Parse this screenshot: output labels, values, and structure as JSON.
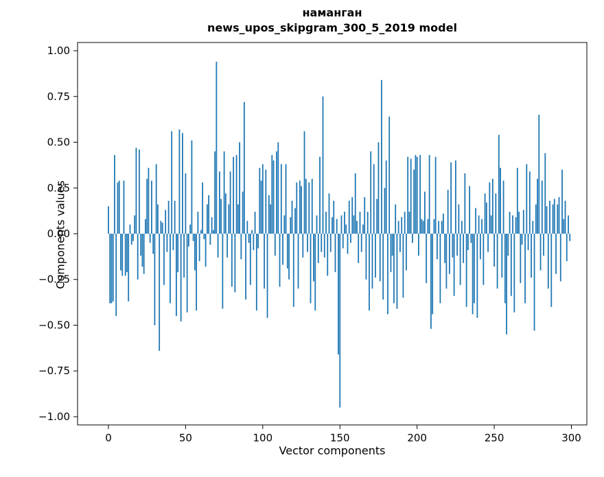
{
  "title": {
    "line1": "наманган",
    "line2": "news_upos_skipgram_300_5_2019 model"
  },
  "axes": {
    "xlabel": "Vector components",
    "ylabel": "Components values"
  },
  "chart_data": {
    "type": "bar",
    "title": "наманган — news_upos_skipgram_300_5_2019 model",
    "xlabel": "Vector components",
    "ylabel": "Components values",
    "bar_color": "#1f77b4",
    "grid": false,
    "legend": "none",
    "xlim": [
      -20,
      310
    ],
    "ylim": [
      -1.045,
      1.045
    ],
    "xticks": [
      0,
      50,
      100,
      150,
      200,
      250,
      300
    ],
    "xticklabels": [
      "0",
      "50",
      "100",
      "150",
      "200",
      "250",
      "300"
    ],
    "yticks": [
      -1.0,
      -0.75,
      -0.5,
      -0.25,
      0.0,
      0.25,
      0.5,
      0.75,
      1.0
    ],
    "yticklabels": [
      "−1.00",
      "−0.75",
      "−0.50",
      "−0.25",
      "0.00",
      "0.25",
      "0.50",
      "0.75",
      "1.00"
    ],
    "values": [
      0.15,
      -0.38,
      -0.38,
      -0.37,
      0.43,
      -0.45,
      0.28,
      0.29,
      -0.2,
      -0.23,
      0.29,
      -0.23,
      -0.21,
      -0.37,
      0.05,
      -0.06,
      -0.04,
      0.1,
      0.47,
      -0.25,
      0.46,
      -0.12,
      -0.18,
      -0.22,
      0.08,
      0.3,
      0.36,
      -0.05,
      0.29,
      -0.11,
      -0.5,
      0.38,
      0.16,
      -0.64,
      0.07,
      0.06,
      -0.28,
      0.13,
      -0.1,
      0.18,
      -0.38,
      0.56,
      -0.09,
      0.18,
      -0.45,
      -0.21,
      0.57,
      -0.48,
      0.55,
      -0.24,
      0.33,
      -0.43,
      -0.07,
      0.05,
      0.51,
      -0.04,
      -0.2,
      -0.42,
      0.12,
      -0.15,
      0.02,
      0.28,
      -0.03,
      -0.18,
      0.16,
      0.21,
      -0.06,
      0.09,
      0.02,
      0.45,
      0.94,
      -0.13,
      0.34,
      0.19,
      -0.41,
      0.45,
      0.22,
      -0.13,
      0.16,
      0.34,
      -0.29,
      0.42,
      -0.32,
      0.43,
      0.16,
      0.5,
      -0.14,
      0.23,
      0.72,
      -0.36,
      0.07,
      -0.05,
      -0.28,
      0.02,
      -0.09,
      0.12,
      -0.42,
      -0.08,
      0.36,
      0.29,
      0.38,
      -0.3,
      0.35,
      -0.46,
      0.21,
      0.16,
      0.43,
      0.4,
      -0.12,
      0.45,
      0.5,
      -0.29,
      0.38,
      -0.17,
      0.1,
      0.38,
      -0.19,
      -0.25,
      0.09,
      0.18,
      -0.4,
      0.14,
      0.28,
      -0.3,
      0.29,
      0.26,
      -0.13,
      0.56,
      0.3,
      -0.1,
      0.28,
      -0.38,
      0.3,
      -0.26,
      -0.42,
      0.1,
      -0.16,
      0.42,
      -0.1,
      0.75,
      -0.13,
      0.12,
      -0.23,
      0.22,
      -0.1,
      0.09,
      0.18,
      -0.21,
      0.08,
      -0.66,
      -0.95,
      0.1,
      -0.08,
      0.12,
      0.05,
      -0.11,
      0.18,
      -0.05,
      0.2,
      0.1,
      0.33,
      0.07,
      -0.16,
      0.12,
      -0.1,
      0.05,
      0.2,
      -0.25,
      0.12,
      -0.42,
      0.45,
      -0.3,
      0.38,
      -0.24,
      0.19,
      0.5,
      -0.26,
      0.84,
      -0.36,
      0.25,
      0.4,
      -0.44,
      0.64,
      -0.21,
      -0.12,
      -0.38,
      0.16,
      -0.41,
      0.07,
      -0.1,
      0.09,
      -0.35,
      0.12,
      -0.2,
      0.42,
      0.12,
      0.41,
      -0.05,
      0.35,
      0.43,
      0.42,
      -0.12,
      0.43,
      0.08,
      0.07,
      0.23,
      -0.27,
      0.08,
      0.43,
      -0.52,
      -0.44,
      0.08,
      0.42,
      -0.14,
      0.07,
      -0.38,
      0.07,
      0.11,
      -0.16,
      -0.3,
      0.24,
      -0.22,
      0.39,
      -0.13,
      -0.34,
      0.4,
      -0.12,
      0.16,
      -0.28,
      0.07,
      -0.16,
      0.33,
      -0.4,
      -0.09,
      0.26,
      -0.05,
      -0.44,
      -0.38,
      0.14,
      -0.46,
      0.1,
      -0.14,
      0.08,
      -0.28,
      0.22,
      0.17,
      -0.1,
      0.28,
      0.1,
      0.3,
      -0.18,
      0.22,
      -0.3,
      0.54,
      0.36,
      -0.24,
      0.29,
      -0.38,
      -0.55,
      -0.12,
      0.12,
      -0.34,
      0.1,
      -0.43,
      0.09,
      0.36,
      0.12,
      -0.27,
      -0.06,
      0.13,
      -0.38,
      0.38,
      -0.09,
      0.34,
      -0.24,
      0.07,
      -0.53,
      0.16,
      0.3,
      0.65,
      -0.2,
      0.29,
      -0.12,
      0.44,
      0.15,
      -0.3,
      0.18,
      -0.4,
      0.16,
      0.19,
      -0.22,
      0.16,
      0.2,
      -0.26,
      0.35,
      0.08,
      0.18,
      -0.15,
      0.1,
      -0.04
    ]
  }
}
